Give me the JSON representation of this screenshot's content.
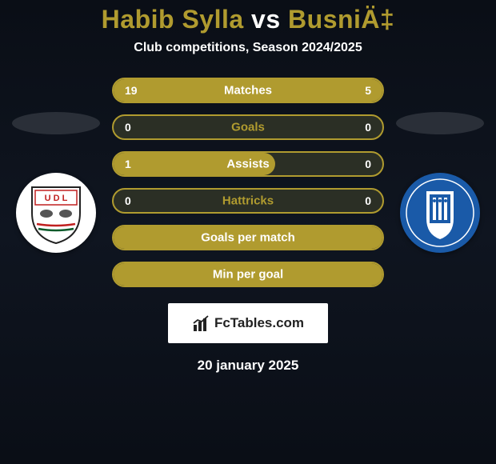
{
  "title": {
    "player1": "Habib Sylla",
    "vs": "vs",
    "player2": "BusniÄ‡",
    "color_player": "#b09b2f",
    "color_vs": "#ffffff"
  },
  "subtitle": "Club competitions, Season 2024/2025",
  "stats": {
    "border_color": "#b09b2f",
    "empty_bg": "#2b2f25",
    "fill_color": "#b09b2f",
    "label_color_on_fill": "#ffffff",
    "label_color_on_empty": "#b09b2f",
    "rows": [
      {
        "label": "Matches",
        "left": "19",
        "right": "5",
        "fill_side": "full",
        "fill_pct": 100
      },
      {
        "label": "Goals",
        "left": "0",
        "right": "0",
        "fill_side": "none",
        "fill_pct": 0
      },
      {
        "label": "Assists",
        "left": "1",
        "right": "0",
        "fill_side": "left",
        "fill_pct": 60
      },
      {
        "label": "Hattricks",
        "left": "0",
        "right": "0",
        "fill_side": "none",
        "fill_pct": 0
      },
      {
        "label": "Goals per match",
        "left": "",
        "right": "",
        "fill_side": "full",
        "fill_pct": 100
      },
      {
        "label": "Min per goal",
        "left": "",
        "right": "",
        "fill_side": "full",
        "fill_pct": 100
      }
    ]
  },
  "badges": {
    "left": {
      "bg": "#ffffff",
      "inner_text": "U D L",
      "inner_text_color": "#c02020",
      "stripe_top": "#c02020",
      "stripe_bottom": "#0a5a2a"
    },
    "right": {
      "bg": "#1a5aa8",
      "inner_bg": "#ffffff",
      "inner_text_color": "#1a5aa8"
    }
  },
  "brand": {
    "text": "FcTables.com",
    "icon_name": "chart-icon"
  },
  "date": "20 january 2025"
}
